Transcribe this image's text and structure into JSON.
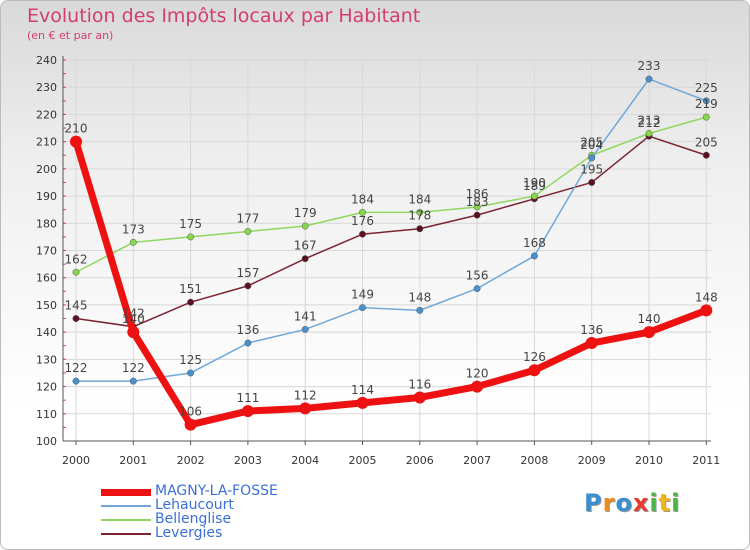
{
  "title": "Evolution des Impôts locaux par Habitant",
  "subtitle": "(en € et par an)",
  "logo": [
    "P",
    "r",
    "o",
    "x",
    "i",
    "t",
    "i"
  ],
  "logo_colors": [
    "#3a8fd0",
    "#f08a1e",
    "#3a8fd0",
    "#e83a2d",
    "#4bb544",
    "#f0b61e",
    "#4bb544"
  ],
  "chart_data": {
    "type": "line",
    "x": [
      "2000",
      "2001",
      "2002",
      "2003",
      "2004",
      "2005",
      "2006",
      "2007",
      "2008",
      "2009",
      "2010",
      "2011"
    ],
    "yticks": [
      "100",
      "110",
      "120",
      "130",
      "140",
      "150",
      "160",
      "170",
      "180",
      "190",
      "200",
      "210",
      "220",
      "230",
      "240"
    ],
    "ylim": [
      100,
      240
    ],
    "grid": true,
    "legend": "bottom-left",
    "series": [
      {
        "name": "Levergies",
        "color": "#7a2430",
        "marker": "#5a1020",
        "width": 1.5,
        "values": [
          145,
          142,
          151,
          157,
          167,
          176,
          178,
          183,
          189,
          195,
          212,
          205
        ],
        "labels": [
          "145",
          "142",
          "151",
          "157",
          "167",
          "176",
          "178",
          "183",
          "189",
          "195",
          "212",
          "205"
        ]
      },
      {
        "name": "Bellenglise",
        "color": "#8fd85f",
        "marker": "#86d84a",
        "width": 1.5,
        "values": [
          162,
          173,
          175,
          177,
          179,
          184,
          184,
          186,
          190,
          205,
          213,
          219
        ],
        "labels": [
          "162",
          "173",
          "175",
          "177",
          "179",
          "184",
          "184",
          "186",
          "190",
          "205",
          "213",
          "219"
        ]
      },
      {
        "name": "Lehaucourt",
        "color": "#6fa8d8",
        "marker": "#4a8fcf",
        "width": 1.5,
        "values": [
          122,
          122,
          125,
          136,
          141,
          149,
          148,
          156,
          168,
          204,
          233,
          225
        ],
        "labels": [
          "122",
          "122",
          "125",
          "136",
          "141",
          "149",
          "148",
          "156",
          "168",
          "204",
          "233",
          "225"
        ]
      },
      {
        "name": "MAGNY-LA-FOSSE",
        "color": "#ee1111",
        "marker": "#ee1111",
        "width": 7,
        "values": [
          210,
          140,
          106,
          111,
          112,
          114,
          116,
          120,
          126,
          136,
          140,
          148
        ],
        "labels": [
          "210",
          "140",
          "106",
          "111",
          "112",
          "114",
          "116",
          "120",
          "126",
          "136",
          "140",
          "148"
        ]
      }
    ]
  },
  "legend_items": [
    {
      "label": "MAGNY-LA-FOSSE",
      "color": "#ee1111",
      "text_color": "#3a6fd8"
    },
    {
      "label": "Lehaucourt",
      "color": "#6fa8d8",
      "text_color": "#3a6fd8"
    },
    {
      "label": "Bellenglise",
      "color": "#8fd85f",
      "text_color": "#3a6fd8"
    },
    {
      "label": "Levergies",
      "color": "#7a2430",
      "text_color": "#3a6fd8"
    }
  ]
}
